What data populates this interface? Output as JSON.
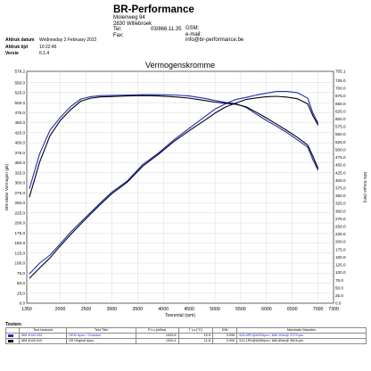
{
  "company": {
    "name": "BR-Performance",
    "street": "Molenweg 94",
    "city": "2830 Willebroek",
    "tel_label": "Tel:",
    "tel": "03/866.11.35",
    "fax_label": "Fax:",
    "gsm_label": "GSM:",
    "email_label": "e-mail:",
    "email": "info@br-performance.be"
  },
  "meta": {
    "date_label": "Afdruk datum",
    "date": "Wednesday 2 February 2022",
    "time_label": "Afdruk tijd",
    "time": "10:22:46",
    "version_label": "Versie",
    "version": "6.1.4"
  },
  "chart_data": {
    "type": "line",
    "title": "Vermogenskromme",
    "xlabel": "Toerental (rpm)",
    "ylabel_left": "DIN Motor Vermogen (pk)",
    "ylabel_right": "DIN Torque (Nm)",
    "xlim": [
      1350,
      7300
    ],
    "xticks": [
      1350,
      2000,
      2500,
      3000,
      3500,
      4000,
      4500,
      5000,
      5500,
      6000,
      6500,
      7000,
      7300
    ],
    "ylim_left": [
      0,
      578.2
    ],
    "yticks_left": [
      "578.2",
      "550.0",
      "525.0",
      "500.0",
      "475.0",
      "450.0",
      "425.0",
      "400.0",
      "375.0",
      "350.0",
      "325.0",
      "300.0",
      "275.0",
      "250.0",
      "225.0",
      "200.0",
      "175.0",
      "150.0",
      "125.0",
      "100.0",
      "75.0",
      "50.0",
      "25.0",
      "0.0"
    ],
    "ylim_right": [
      0,
      755.1
    ],
    "yticks_right": [
      "755.1",
      "725.0",
      "700.0",
      "675.0",
      "650.0",
      "625.0",
      "600.0",
      "575.0",
      "550.0",
      "525.0",
      "500.0",
      "475.0",
      "450.0",
      "425.0",
      "400.0",
      "375.0",
      "350.0",
      "325.0",
      "300.0",
      "275.0",
      "250.0",
      "225.0",
      "200.0",
      "175.0",
      "150.0",
      "125.0",
      "100.0",
      "75.0",
      "50.0",
      "25.0",
      "0.0"
    ],
    "grid": true,
    "series": [
      {
        "color": "#1f2bbd",
        "axis": "right",
        "x": [
          1400,
          1600,
          1800,
          2000,
          2200,
          2400,
          2600,
          2800,
          3000,
          3300,
          3600,
          3900,
          4200,
          4500,
          4800,
          5000,
          5200,
          5400,
          5600,
          5800,
          6000,
          6200,
          6400,
          6600,
          6800,
          6900,
          7000
        ],
        "y": [
          372,
          487,
          563,
          605,
          640,
          665,
          673,
          676,
          677,
          678,
          679,
          679,
          678,
          675,
          667,
          660,
          654,
          650,
          638,
          616,
          595,
          576,
          555,
          532,
          508,
          467,
          433
        ]
      },
      {
        "color": "#1f2bbd",
        "axis": "left",
        "x": [
          1400,
          1600,
          1800,
          2000,
          2200,
          2400,
          2600,
          2800,
          3000,
          3300,
          3600,
          3900,
          4200,
          4500,
          4800,
          5000,
          5200,
          5400,
          5600,
          5800,
          6000,
          6200,
          6400,
          6600,
          6800,
          6900,
          7000
        ],
        "y": [
          73,
          100,
          120,
          148,
          177,
          203,
          228,
          253,
          277,
          305,
          346,
          374,
          407,
          436,
          465,
          484,
          497,
          508,
          513,
          519,
          524,
          528,
          528,
          525,
          511,
          474,
          449
        ]
      },
      {
        "color": "#000000",
        "axis": "right",
        "x": [
          1400,
          1600,
          1800,
          2000,
          2200,
          2400,
          2600,
          2800,
          3000,
          3300,
          3600,
          3900,
          4200,
          4500,
          4800,
          5000,
          5200,
          5400,
          5600,
          5800,
          6000,
          6200,
          6400,
          6600,
          6800,
          6900,
          7000
        ],
        "y": [
          345,
          460,
          545,
          595,
          630,
          658,
          668,
          672,
          673,
          675,
          676,
          675,
          672,
          668,
          660,
          655,
          651,
          648,
          640,
          622,
          603,
          583,
          562,
          540,
          515,
          478,
          438
        ]
      },
      {
        "color": "#000000",
        "axis": "left",
        "x": [
          1400,
          1600,
          1800,
          2000,
          2200,
          2400,
          2600,
          2800,
          3000,
          3300,
          3600,
          3900,
          4200,
          4500,
          4800,
          5000,
          5200,
          5400,
          5600,
          5800,
          6000,
          6200,
          6400,
          6600,
          6800,
          6900,
          7000
        ],
        "y": [
          62,
          88,
          113,
          143,
          171,
          198,
          224,
          249,
          273,
          302,
          342,
          371,
          403,
          430,
          456,
          474,
          489,
          499,
          508,
          512,
          515,
          516,
          514,
          510,
          497,
          467,
          444
        ]
      }
    ]
  },
  "tests": {
    "title": "Testen:",
    "headers": [
      "Test bestand",
      "Test Titel",
      "P Lu.(mBar)",
      "T Lu.(°C)",
      "DIN",
      "Maximale Waarden"
    ],
    "rows": [
      {
        "file": "MM 4040.033",
        "title": "OEM dyno + Eventuri",
        "p": "1009.8",
        "t": "15.9",
        "din": "0.996",
        "max": "525.6PK@6303rpm / 689.1Nm@ 3727rpm",
        "color": "#1f2bbd"
      },
      {
        "file": "MM 4040.010",
        "title": "Olf Original dyno",
        "p": "1000.4",
        "t": "11.8",
        "din": "0.999",
        "max": "512.1PK@6269rpm / 680.8Nm@ 3601rpm",
        "color": "#000000"
      }
    ]
  }
}
